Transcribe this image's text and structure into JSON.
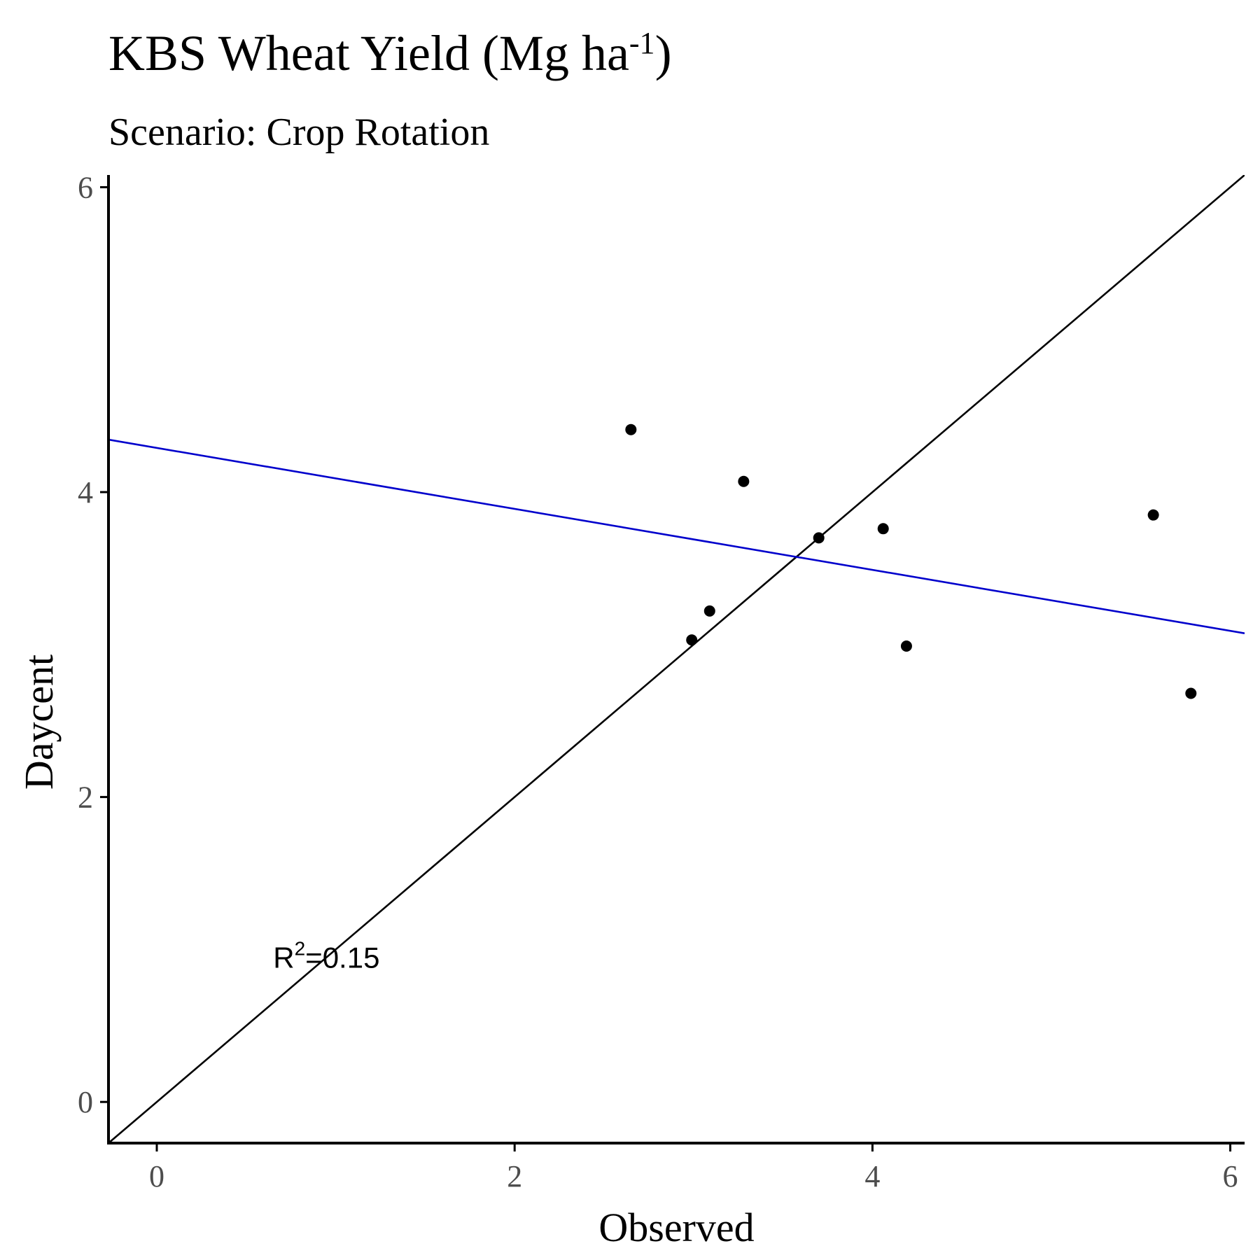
{
  "chart_data": {
    "type": "scatter",
    "title": "KBS Wheat Yield (Mg ha",
    "title_superscript": "-1",
    "title_suffix": ")",
    "subtitle": "Scenario: Crop Rotation",
    "xlabel": "Observed",
    "ylabel": "Daycent",
    "xlim": [
      -0.27,
      6.08
    ],
    "ylim": [
      -0.27,
      6.08
    ],
    "x_ticks": [
      0,
      2,
      4,
      6
    ],
    "y_ticks": [
      0,
      2,
      4,
      6
    ],
    "grid": false,
    "points": [
      {
        "x": 2.65,
        "y": 4.41
      },
      {
        "x": 3.28,
        "y": 4.07
      },
      {
        "x": 2.99,
        "y": 3.03
      },
      {
        "x": 3.09,
        "y": 3.22
      },
      {
        "x": 3.7,
        "y": 3.7
      },
      {
        "x": 4.06,
        "y": 3.76
      },
      {
        "x": 4.19,
        "y": 2.99
      },
      {
        "x": 5.57,
        "y": 3.85
      },
      {
        "x": 5.78,
        "y": 2.68
      }
    ],
    "reference_line": {
      "slope": 1,
      "intercept": 0,
      "color": "#000000"
    },
    "fit_line": {
      "slope": -0.2,
      "intercept": 4.29,
      "color": "#0000cc"
    },
    "annotation": {
      "text_main": "R",
      "text_sup": "2",
      "text_rest": "=0.15",
      "x": 0.67,
      "y": 0.95
    }
  },
  "colors": {
    "points": "#000000",
    "axis": "#000000",
    "tick_label": "#4d4d4d"
  }
}
